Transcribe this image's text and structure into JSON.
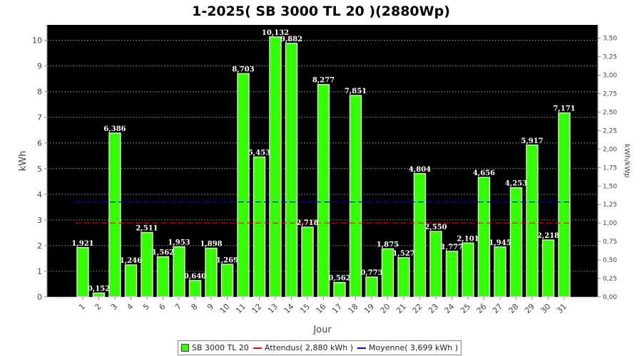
{
  "chart_data": {
    "type": "bar",
    "title": "1-2025( SB 3000 TL 20 )(2880Wp)",
    "xlabel": "Jour",
    "ylabel": "kWh",
    "ylabel_right": "kWh/kWp",
    "ylim": [
      0,
      10.6
    ],
    "ylim_right": [
      0,
      3.68
    ],
    "yticks": [
      "0",
      "1",
      "2",
      "3",
      "4",
      "5",
      "6",
      "7",
      "8",
      "9",
      "10"
    ],
    "yticks_right": [
      "0,00",
      "0,25",
      "0,50",
      "0,75",
      "1,00",
      "1,25",
      "1,50",
      "1,75",
      "2,00",
      "2,25",
      "2,50",
      "2,75",
      "3,00",
      "3,25",
      "3,50"
    ],
    "categories": [
      "1",
      "2",
      "3",
      "4",
      "5",
      "6",
      "7",
      "8",
      "9",
      "10",
      "11",
      "12",
      "13",
      "14",
      "15",
      "16",
      "17",
      "18",
      "19",
      "20",
      "21",
      "22",
      "23",
      "24",
      "25",
      "26",
      "27",
      "28",
      "29",
      "30",
      "31"
    ],
    "series": [
      {
        "name": "SB 3000 TL 20",
        "color": "#33ff00",
        "values": [
          1.921,
          0.152,
          6.386,
          1.246,
          2.511,
          1.562,
          1.953,
          0.64,
          1.898,
          1.269,
          8.703,
          5.453,
          10.132,
          9.882,
          2.718,
          8.277,
          0.562,
          7.851,
          0.773,
          1.875,
          1.527,
          4.804,
          2.55,
          1.777,
          2.101,
          4.656,
          1.945,
          4.253,
          5.917,
          2.218,
          7.171
        ],
        "labels": [
          "1,921",
          "0,152",
          "6,386",
          "1,246",
          "2,511",
          "1,562",
          "1,953",
          "0,640",
          "1,898",
          "1,269",
          "8,703",
          "5,453",
          "10,132",
          "9,882",
          "2,718",
          "8,277",
          "0,562",
          "7,851",
          "0,773",
          "1,875",
          "1,527",
          "4,804",
          "2,550",
          "1,777",
          "2,101",
          "4,656",
          "1,945",
          "4,253",
          "5,917",
          "2,218",
          "7,171"
        ]
      }
    ],
    "reference_lines": [
      {
        "name": "Attendus( 2,880 kWh )",
        "value": 2.88,
        "color": "#ff0000"
      },
      {
        "name": "Moyenne( 3,699 kWh )",
        "value": 3.699,
        "color": "#0000ff"
      }
    ],
    "grid": true,
    "plot_background": "#000000",
    "legend_position": "bottom"
  }
}
